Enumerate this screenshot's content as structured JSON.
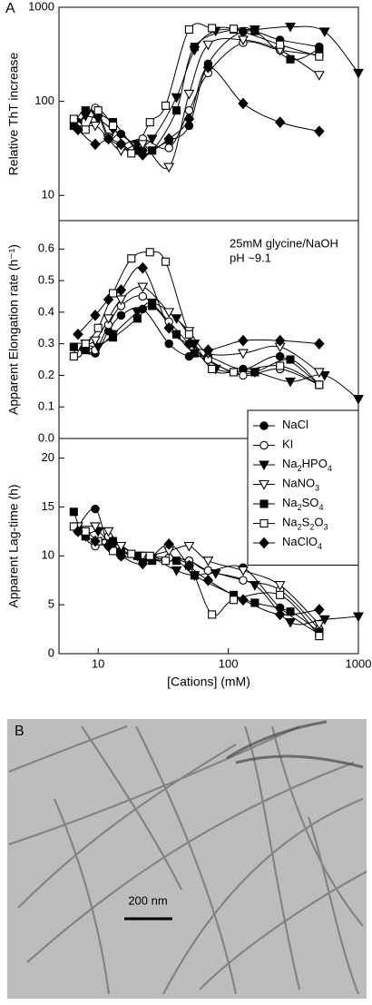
{
  "panel_labels": [
    "A",
    "B"
  ],
  "chart_data": [
    {
      "type": "line",
      "ylabel": "Relative ThT increase",
      "log_x": true,
      "log_y": true,
      "xlim": [
        5,
        1000
      ],
      "ylim": [
        5.4,
        1000
      ],
      "yticks": [
        10,
        100,
        1000
      ],
      "series": [
        {
          "marker": "circle",
          "filled": true,
          "color": "#000000",
          "x": [
            7,
            9.5,
            12,
            15,
            22,
            35,
            50,
            70,
            130,
            250,
            500
          ],
          "values": [
            60,
            80,
            40,
            45,
            30,
            38,
            55,
            250,
            550,
            450,
            380
          ]
        },
        {
          "marker": "circle",
          "filled": false,
          "color": "#000000",
          "x": [
            7,
            9.5,
            12,
            15,
            22,
            35,
            50,
            70,
            130,
            250,
            500
          ],
          "values": [
            55,
            85,
            42,
            35,
            40,
            32,
            80,
            200,
            420,
            350,
            310
          ]
        },
        {
          "marker": "triangle",
          "filled": true,
          "color": "#000000",
          "x": [
            8,
            10,
            13,
            20,
            26,
            40,
            55,
            80,
            160,
            300,
            550,
            1000
          ],
          "values": [
            70,
            65,
            50,
            35,
            40,
            110,
            350,
            560,
            580,
            620,
            550,
            200
          ]
        },
        {
          "marker": "triangle",
          "filled": false,
          "color": "#000000",
          "x": [
            7,
            9.5,
            12,
            15,
            22,
            35,
            50,
            70,
            130,
            250,
            500
          ],
          "values": [
            50,
            55,
            40,
            30,
            35,
            20,
            120,
            400,
            450,
            350,
            190
          ]
        },
        {
          "marker": "square",
          "filled": true,
          "color": "#000000",
          "x": [
            6.5,
            8,
            13,
            20,
            26,
            40,
            55,
            110,
            160,
            300,
            500
          ],
          "values": [
            55,
            80,
            60,
            30,
            30,
            80,
            380,
            580,
            560,
            280,
            360
          ]
        },
        {
          "marker": "square",
          "filled": false,
          "color": "#000000",
          "x": [
            6.5,
            8,
            10,
            13,
            18,
            25,
            33,
            50,
            75,
            110,
            250,
            500
          ],
          "values": [
            65,
            50,
            80,
            55,
            28,
            60,
            90,
            580,
            600,
            590,
            400,
            300
          ]
        },
        {
          "marker": "diamond",
          "filled": true,
          "color": "#000000",
          "x": [
            7,
            9.5,
            12,
            15,
            22,
            35,
            50,
            70,
            130,
            250,
            500
          ],
          "values": [
            50,
            35,
            40,
            35,
            27,
            40,
            65,
            230,
            95,
            60,
            48
          ]
        }
      ]
    },
    {
      "type": "line",
      "ylabel": "Apparent Elongation rate (h⁻¹)",
      "log_x": true,
      "xlim": [
        5,
        1000
      ],
      "ylim": [
        0,
        0.69
      ],
      "yticks": [
        {
          "value": 0,
          "label": "0.0"
        },
        0.1,
        0.2,
        0.3,
        0.4,
        0.5,
        0.6
      ],
      "annotations": [
        "25mM glycine/NaOH",
        "pH ~9.1"
      ],
      "series": [
        {
          "marker": "circle",
          "filled": true,
          "color": "#000000",
          "x": [
            7,
            9.5,
            12,
            15,
            22,
            35,
            50,
            70,
            130,
            250,
            500
          ],
          "values": [
            0.28,
            0.27,
            0.34,
            0.39,
            0.41,
            0.3,
            0.26,
            0.26,
            0.22,
            0.26,
            0.17
          ]
        },
        {
          "marker": "circle",
          "filled": false,
          "color": "#000000",
          "x": [
            7,
            9.5,
            12,
            15,
            22,
            35,
            50,
            70,
            130,
            250,
            500
          ],
          "values": [
            0.27,
            0.28,
            0.36,
            0.42,
            0.45,
            0.37,
            0.3,
            0.25,
            0.2,
            0.22,
            0.17
          ]
        },
        {
          "marker": "triangle",
          "filled": true,
          "color": "#000000",
          "x": [
            8,
            10,
            13,
            20,
            26,
            40,
            55,
            80,
            160,
            300,
            550,
            1000
          ],
          "values": [
            0.3,
            0.29,
            0.33,
            0.4,
            0.43,
            0.38,
            0.3,
            0.22,
            0.21,
            0.18,
            0.2,
            0.125
          ]
        },
        {
          "marker": "triangle",
          "filled": false,
          "color": "#000000",
          "x": [
            7,
            9.5,
            12,
            15,
            22,
            35,
            50,
            70,
            130,
            250,
            500
          ],
          "values": [
            0.29,
            0.31,
            0.38,
            0.44,
            0.48,
            0.4,
            0.34,
            0.27,
            0.27,
            0.29,
            0.21
          ]
        },
        {
          "marker": "square",
          "filled": true,
          "color": "#000000",
          "x": [
            6.5,
            8,
            13,
            20,
            26,
            40,
            55,
            110,
            160,
            300,
            500
          ],
          "values": [
            0.29,
            0.28,
            0.32,
            0.38,
            0.42,
            0.33,
            0.27,
            0.21,
            0.21,
            0.25,
            0.17
          ]
        },
        {
          "marker": "square",
          "filled": false,
          "color": "#000000",
          "x": [
            6.5,
            8,
            10,
            13,
            18,
            25,
            33,
            50,
            75,
            110,
            250,
            500
          ],
          "values": [
            0.26,
            0.3,
            0.35,
            0.46,
            0.57,
            0.59,
            0.56,
            0.33,
            0.22,
            0.21,
            0.23,
            0.17
          ]
        },
        {
          "marker": "diamond",
          "filled": true,
          "color": "#000000",
          "x": [
            7,
            9.5,
            12,
            15,
            22,
            35,
            50,
            70,
            130,
            250,
            500
          ],
          "values": [
            0.33,
            0.39,
            0.44,
            0.47,
            0.54,
            0.35,
            0.3,
            0.28,
            0.31,
            0.31,
            0.3
          ]
        }
      ]
    },
    {
      "type": "line",
      "ylabel": "Apparent Lag-time (h)",
      "xlabel": "[Cations] (mM)",
      "log_x": true,
      "xlim": [
        5,
        1000
      ],
      "xticks": [
        10,
        100,
        1000
      ],
      "ylim": [
        0,
        22
      ],
      "yticks": [
        0,
        5,
        10,
        15,
        20
      ],
      "legend": "upper right",
      "series": [
        {
          "name": "NaCl",
          "marker": "circle",
          "filled": true,
          "color": "#000000",
          "x": [
            7,
            9.5,
            12,
            15,
            22,
            35,
            50,
            70,
            130,
            250,
            500
          ],
          "values": [
            13,
            14.8,
            11,
            10.5,
            9.5,
            9.8,
            9.5,
            8.5,
            8.8,
            4.7,
            2
          ]
        },
        {
          "name": "KI",
          "marker": "circle",
          "filled": false,
          "color": "#000000",
          "x": [
            7,
            9.5,
            12,
            15,
            22,
            35,
            50,
            70,
            130,
            250,
            500
          ],
          "values": [
            12.5,
            11,
            12,
            10,
            10,
            9.8,
            9.5,
            8.5,
            7.5,
            6.5,
            2.5
          ]
        },
        {
          "name": "Na2HPO4",
          "marker": "triangle",
          "filled": true,
          "color": "#000000",
          "x": [
            8,
            10,
            13,
            20,
            26,
            40,
            55,
            80,
            160,
            300,
            550,
            1000
          ],
          "values": [
            12,
            12.5,
            11,
            10,
            9.8,
            8.5,
            8,
            8.2,
            7,
            3.2,
            3.5,
            3.8
          ]
        },
        {
          "name": "NaNO3",
          "marker": "triangle",
          "filled": false,
          "color": "#000000",
          "x": [
            7,
            9.5,
            12,
            15,
            22,
            35,
            50,
            70,
            130,
            250,
            500
          ],
          "values": [
            13,
            13,
            12.5,
            11,
            10,
            10.5,
            11,
            9.5,
            8.5,
            7,
            3
          ]
        },
        {
          "name": "Na2SO4",
          "marker": "square",
          "filled": true,
          "color": "#000000",
          "x": [
            6.5,
            8,
            13,
            20,
            26,
            40,
            55,
            110,
            160,
            300,
            500
          ],
          "values": [
            14.5,
            12,
            11.5,
            10,
            9.5,
            9.5,
            8,
            6,
            5.2,
            4.3,
            2.2
          ]
        },
        {
          "name": "Na2S2O3",
          "marker": "square",
          "filled": false,
          "color": "#000000",
          "x": [
            6.5,
            8,
            10,
            13,
            18,
            25,
            33,
            50,
            75,
            110,
            250,
            500
          ],
          "values": [
            13,
            12.5,
            11.5,
            10.5,
            10.2,
            10,
            9.5,
            9,
            4,
            5.5,
            6,
            1.8
          ]
        },
        {
          "name": "NaClO4",
          "marker": "diamond",
          "filled": true,
          "color": "#000000",
          "x": [
            7,
            9.5,
            12,
            15,
            22,
            35,
            50,
            70,
            130,
            250,
            500
          ],
          "values": [
            12.5,
            11.5,
            11,
            10,
            9.2,
            11.2,
            9,
            7.5,
            5.5,
            4,
            4.5
          ]
        }
      ]
    }
  ],
  "micrograph": {
    "scale_bar": "200 nm"
  }
}
